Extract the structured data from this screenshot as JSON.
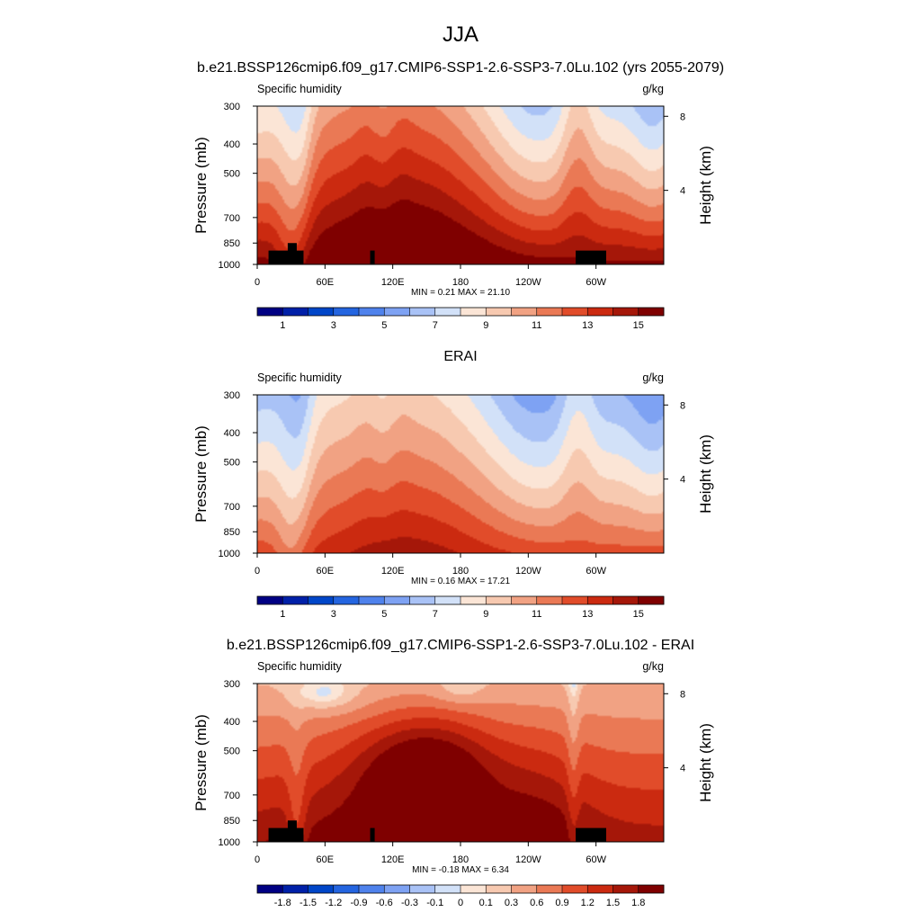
{
  "main_title": "JJA",
  "chart_data": [
    {
      "type": "heatmap",
      "title": "b.e21.BSSP126cmip6.f09_g17.CMIP6-SSP1-2.6-SSP3-7.0Lu.102 (yrs 2055-2079)",
      "left_label": "Specific humidity",
      "units": "g/kg",
      "ylabel": "Pressure (mb)",
      "ylabel_right": "Height (km)",
      "xticks": [
        "0",
        "60E",
        "120E",
        "180",
        "120W",
        "60W"
      ],
      "yticks": [
        "300",
        "400",
        "500",
        "700",
        "850",
        "1000"
      ],
      "right_ticks": [
        "8",
        "4"
      ],
      "stats": "MIN =   0.21  MAX =  21.10",
      "colorbar_labels": [
        "1",
        "3",
        "5",
        "7",
        "9",
        "11",
        "13",
        "15"
      ],
      "colorbar_colors": [
        "#000083",
        "#0020a8",
        "#0046c8",
        "#2465e0",
        "#4f82ec",
        "#7ea2f3",
        "#a9c2f6",
        "#d2e1f8",
        "#fbe5d6",
        "#f7c9b0",
        "#f1a283",
        "#ea7955",
        "#e14c2a",
        "#cb2a10",
        "#a51709",
        "#7f0000"
      ],
      "y_range": [
        1000,
        300
      ],
      "x_range": [
        0,
        360
      ],
      "y_scale": "log",
      "field_type": "absolute",
      "surface_max": 21.1,
      "topography": true
    },
    {
      "type": "heatmap",
      "title": "ERAI",
      "left_label": "Specific humidity",
      "units": "g/kg",
      "ylabel": "Pressure (mb)",
      "ylabel_right": "Height (km)",
      "xticks": [
        "0",
        "60E",
        "120E",
        "180",
        "120W",
        "60W"
      ],
      "yticks": [
        "300",
        "400",
        "500",
        "700",
        "850",
        "1000"
      ],
      "right_ticks": [
        "8",
        "4"
      ],
      "stats": "MIN =   0.16  MAX =  17.21",
      "colorbar_labels": [
        "1",
        "3",
        "5",
        "7",
        "9",
        "11",
        "13",
        "15"
      ],
      "colorbar_colors": [
        "#000083",
        "#0020a8",
        "#0046c8",
        "#2465e0",
        "#4f82ec",
        "#7ea2f3",
        "#a9c2f6",
        "#d2e1f8",
        "#fbe5d6",
        "#f7c9b0",
        "#f1a283",
        "#ea7955",
        "#e14c2a",
        "#cb2a10",
        "#a51709",
        "#7f0000"
      ],
      "y_range": [
        1000,
        300
      ],
      "x_range": [
        0,
        360
      ],
      "y_scale": "log",
      "field_type": "absolute",
      "surface_max": 17.21,
      "topography": false
    },
    {
      "type": "heatmap",
      "title": "b.e21.BSSP126cmip6.f09_g17.CMIP6-SSP1-2.6-SSP3-7.0Lu.102 - ERAI",
      "left_label": "Specific humidity",
      "units": "g/kg",
      "ylabel": "Pressure (mb)",
      "ylabel_right": "Height (km)",
      "xticks": [
        "0",
        "60E",
        "120E",
        "180",
        "120W",
        "60W"
      ],
      "yticks": [
        "300",
        "400",
        "500",
        "700",
        "850",
        "1000"
      ],
      "right_ticks": [
        "8",
        "4"
      ],
      "stats": "MIN =  -0.18  MAX =   6.34",
      "colorbar_labels": [
        "-1.8",
        "-1.5",
        "-1.2",
        "-0.9",
        "-0.6",
        "-0.3",
        "-0.1",
        "0",
        "0.1",
        "0.3",
        "0.6",
        "0.9",
        "1.2",
        "1.5",
        "1.8"
      ],
      "colorbar_colors": [
        "#000083",
        "#0020a8",
        "#0046c8",
        "#2465e0",
        "#4f82ec",
        "#7ea2f3",
        "#a9c2f6",
        "#d2e1f8",
        "#fbe5d6",
        "#f7c9b0",
        "#f1a283",
        "#ea7955",
        "#e14c2a",
        "#cb2a10",
        "#a51709",
        "#7f0000"
      ],
      "y_range": [
        1000,
        300
      ],
      "x_range": [
        0,
        360
      ],
      "y_scale": "log",
      "field_type": "difference",
      "topography": true
    }
  ]
}
